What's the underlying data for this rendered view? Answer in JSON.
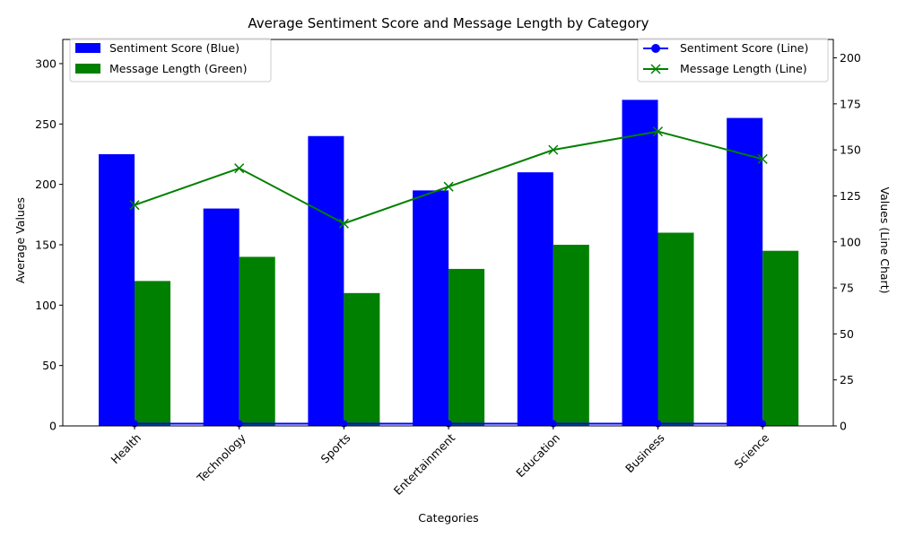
{
  "colors": {
    "sentiment": "#0000ff",
    "message": "#008000"
  },
  "chart_data": {
    "type": "bar",
    "title": "Average Sentiment Score and Message Length by Category",
    "xlabel": "Categories",
    "ylabel": "Average Values",
    "ylabel_right": "Values (Line Chart)",
    "categories": [
      "Health",
      "Technology",
      "Sports",
      "Entertainment",
      "Education",
      "Business",
      "Science"
    ],
    "ylim": [
      0,
      320
    ],
    "yticks": [
      0,
      50,
      100,
      150,
      200,
      250,
      300
    ],
    "ylim_right": [
      0,
      210
    ],
    "yticks_right": [
      0,
      25,
      50,
      75,
      100,
      125,
      150,
      175,
      200
    ],
    "grid": false,
    "bar_series": [
      {
        "name": "Sentiment Score (Blue)",
        "values": [
          225,
          180,
          240,
          195,
          210,
          270,
          255
        ]
      },
      {
        "name": "Message Length (Green)",
        "values": [
          120,
          140,
          110,
          130,
          150,
          160,
          145
        ]
      }
    ],
    "line_series": [
      {
        "name": "Sentiment Score (Line)",
        "axis": "right",
        "marker": "circle",
        "values": [
          1.2,
          1.2,
          1.2,
          1.2,
          1.2,
          1.2,
          1.2
        ]
      },
      {
        "name": "Message Length (Line)",
        "axis": "right",
        "marker": "x",
        "values": [
          120,
          140,
          110,
          130,
          150,
          160,
          145
        ]
      }
    ],
    "legends": {
      "bars": "top-left",
      "lines": "top-right"
    }
  }
}
